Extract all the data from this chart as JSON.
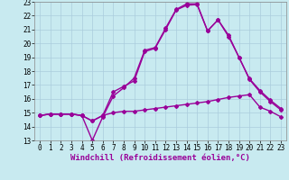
{
  "title": "",
  "xlabel": "Windchill (Refroidissement éolien,°C)",
  "ylabel": "",
  "bg_color": "#c8eaf0",
  "grid_color": "#aaccdd",
  "line_color": "#990099",
  "xlim": [
    -0.5,
    23.5
  ],
  "ylim": [
    13,
    23
  ],
  "yticks": [
    13,
    14,
    15,
    16,
    17,
    18,
    19,
    20,
    21,
    22,
    23
  ],
  "xticks": [
    0,
    1,
    2,
    3,
    4,
    5,
    6,
    7,
    8,
    9,
    10,
    11,
    12,
    13,
    14,
    15,
    16,
    17,
    18,
    19,
    20,
    21,
    22,
    23
  ],
  "line1_x": [
    0,
    1,
    2,
    3,
    4,
    5,
    6,
    7,
    8,
    9,
    10,
    11,
    12,
    13,
    14,
    15,
    16,
    17,
    18,
    19,
    20,
    21,
    22,
    23
  ],
  "line1_y": [
    14.8,
    14.9,
    14.9,
    14.9,
    14.8,
    14.4,
    14.8,
    15.0,
    15.1,
    15.1,
    15.2,
    15.3,
    15.4,
    15.5,
    15.6,
    15.7,
    15.8,
    15.95,
    16.1,
    16.2,
    16.3,
    15.4,
    15.1,
    14.7
  ],
  "line2_x": [
    0,
    1,
    2,
    3,
    4,
    5,
    6,
    7,
    8,
    9,
    10,
    11,
    12,
    13,
    14,
    15,
    16,
    17,
    18,
    19,
    20,
    21,
    22,
    23
  ],
  "line2_y": [
    14.8,
    14.9,
    14.9,
    14.9,
    14.8,
    14.4,
    14.8,
    16.5,
    16.9,
    17.3,
    19.4,
    19.65,
    21.0,
    22.4,
    22.75,
    22.8,
    20.9,
    21.7,
    20.5,
    19.0,
    17.4,
    16.5,
    15.8,
    15.2
  ],
  "line3_x": [
    0,
    1,
    2,
    3,
    4,
    5,
    6,
    7,
    8,
    9,
    10,
    11,
    12,
    13,
    14,
    15,
    16,
    17,
    18,
    19,
    20,
    21,
    22,
    23
  ],
  "line3_y": [
    14.8,
    14.9,
    14.9,
    14.9,
    14.8,
    13.0,
    14.7,
    16.2,
    16.8,
    17.5,
    19.5,
    19.7,
    21.1,
    22.45,
    22.85,
    22.85,
    20.9,
    21.7,
    20.6,
    19.0,
    17.45,
    16.6,
    15.9,
    15.3
  ],
  "marker": "D",
  "markersize": 2.0,
  "linewidth": 1.0,
  "xlabel_fontsize": 6.5,
  "tick_fontsize": 5.5
}
